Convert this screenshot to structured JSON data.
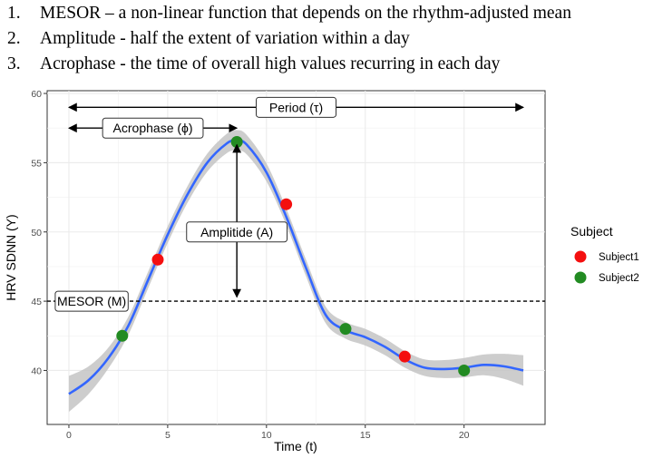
{
  "list_items": [
    {
      "number": "1.",
      "text": "MESOR – a non-linear function that depends on the rhythm-adjusted mean"
    },
    {
      "number": "2.",
      "text": "Amplitude - half the extent of variation within a day"
    },
    {
      "number": "3.",
      "text": "Acrophase - the time of overall high values recurring in each day"
    }
  ],
  "chart_data": {
    "type": "line",
    "xlabel": "Time (t)",
    "ylabel": "HRV SDNN (Y)",
    "xlim": [
      -1.1,
      24.1
    ],
    "ylim": [
      36.1,
      60.2
    ],
    "x_ticks": [
      0,
      5,
      10,
      15,
      20
    ],
    "y_ticks": [
      40,
      45,
      50,
      55,
      60
    ],
    "grid": true,
    "legend": {
      "title": "Subject",
      "position": "right",
      "entries": [
        {
          "name": "Subject1",
          "color": "#f40f0f"
        },
        {
          "name": "Subject2",
          "color": "#228b22"
        }
      ]
    },
    "fit_curve": {
      "color": "#3366ff",
      "band_color": "#c4c4c4",
      "x": [
        0,
        1,
        2,
        3,
        4,
        5,
        6,
        7,
        8,
        8.5,
        9,
        10,
        11,
        12,
        13,
        14,
        15,
        16,
        17,
        18,
        19,
        20,
        21,
        22,
        23
      ],
      "y": [
        38.3,
        39.3,
        40.9,
        43.2,
        46.5,
        49.8,
        52.7,
        55.0,
        56.4,
        56.6,
        56.3,
        54.3,
        51.1,
        47.4,
        44.0,
        42.9,
        42.4,
        41.7,
        40.8,
        40.2,
        40.1,
        40.2,
        40.4,
        40.3,
        40.0
      ],
      "band_width": [
        1.3,
        1.0,
        0.75,
        0.65,
        0.6,
        0.6,
        0.6,
        0.65,
        0.7,
        0.75,
        0.7,
        0.65,
        0.6,
        0.6,
        0.6,
        0.6,
        0.6,
        0.6,
        0.6,
        0.6,
        0.65,
        0.7,
        0.75,
        0.9,
        1.1
      ]
    },
    "points": [
      {
        "x": 2.7,
        "y": 42.5,
        "subject": "Subject2"
      },
      {
        "x": 4.5,
        "y": 48.0,
        "subject": "Subject1"
      },
      {
        "x": 8.5,
        "y": 56.5,
        "subject": "Subject2"
      },
      {
        "x": 11.0,
        "y": 52.0,
        "subject": "Subject1"
      },
      {
        "x": 14.0,
        "y": 43.0,
        "subject": "Subject2"
      },
      {
        "x": 17.0,
        "y": 41.0,
        "subject": "Subject1"
      },
      {
        "x": 20.0,
        "y": 40.0,
        "subject": "Subject2"
      }
    ],
    "mesor_line": {
      "y": 45
    },
    "annotations": {
      "period": {
        "label": "Period (τ)",
        "x_start": 0,
        "x_end": 23,
        "y": 59
      },
      "acrophase": {
        "label": "Acrophase (ϕ)",
        "x_start": 0,
        "x_end": 8.5,
        "y": 57.5
      },
      "amplitude": {
        "label": "Amplitide (A)",
        "x": 8.5,
        "y_start": 45.3,
        "y_end": 56.3,
        "label_y": 50
      },
      "mesor": {
        "label": "MESOR (M)",
        "y": 45
      }
    }
  }
}
